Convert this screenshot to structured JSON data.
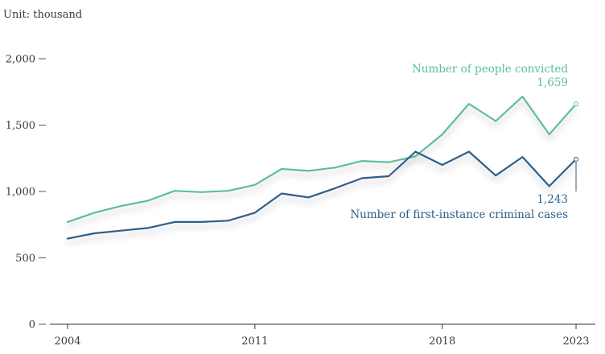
{
  "chart_data": {
    "type": "line",
    "unit_label": "Unit: thousand",
    "x": [
      2004,
      2005,
      2006,
      2007,
      2008,
      2009,
      2010,
      2011,
      2012,
      2013,
      2014,
      2015,
      2016,
      2017,
      2018,
      2019,
      2020,
      2021,
      2022,
      2023
    ],
    "x_tick_labels": [
      "2004",
      "2011",
      "2018",
      "2023"
    ],
    "x_ticks": [
      2004,
      2011,
      2018,
      2023
    ],
    "y_ticks": [
      0,
      500,
      1000,
      1500,
      2000
    ],
    "y_tick_labels": [
      "0",
      "500",
      "1,000",
      "1,500",
      "2,000"
    ],
    "ylim": [
      0,
      2000
    ],
    "xlim": [
      2004,
      2023
    ],
    "grid": false,
    "series": [
      {
        "name": "Number of people convicted",
        "color": "#5bbf9b",
        "values": [
          770,
          840,
          890,
          930,
          1005,
          995,
          1005,
          1050,
          1170,
          1155,
          1180,
          1230,
          1220,
          1265,
          1430,
          1660,
          1530,
          1715,
          1430,
          1659
        ],
        "end_label": "1,659"
      },
      {
        "name": "Number of first-instance criminal cases",
        "color": "#2e5f8a",
        "values": [
          645,
          685,
          705,
          725,
          770,
          770,
          780,
          840,
          985,
          955,
          1025,
          1100,
          1115,
          1300,
          1200,
          1300,
          1120,
          1260,
          1040,
          1243
        ],
        "end_label": "1,243"
      }
    ]
  }
}
